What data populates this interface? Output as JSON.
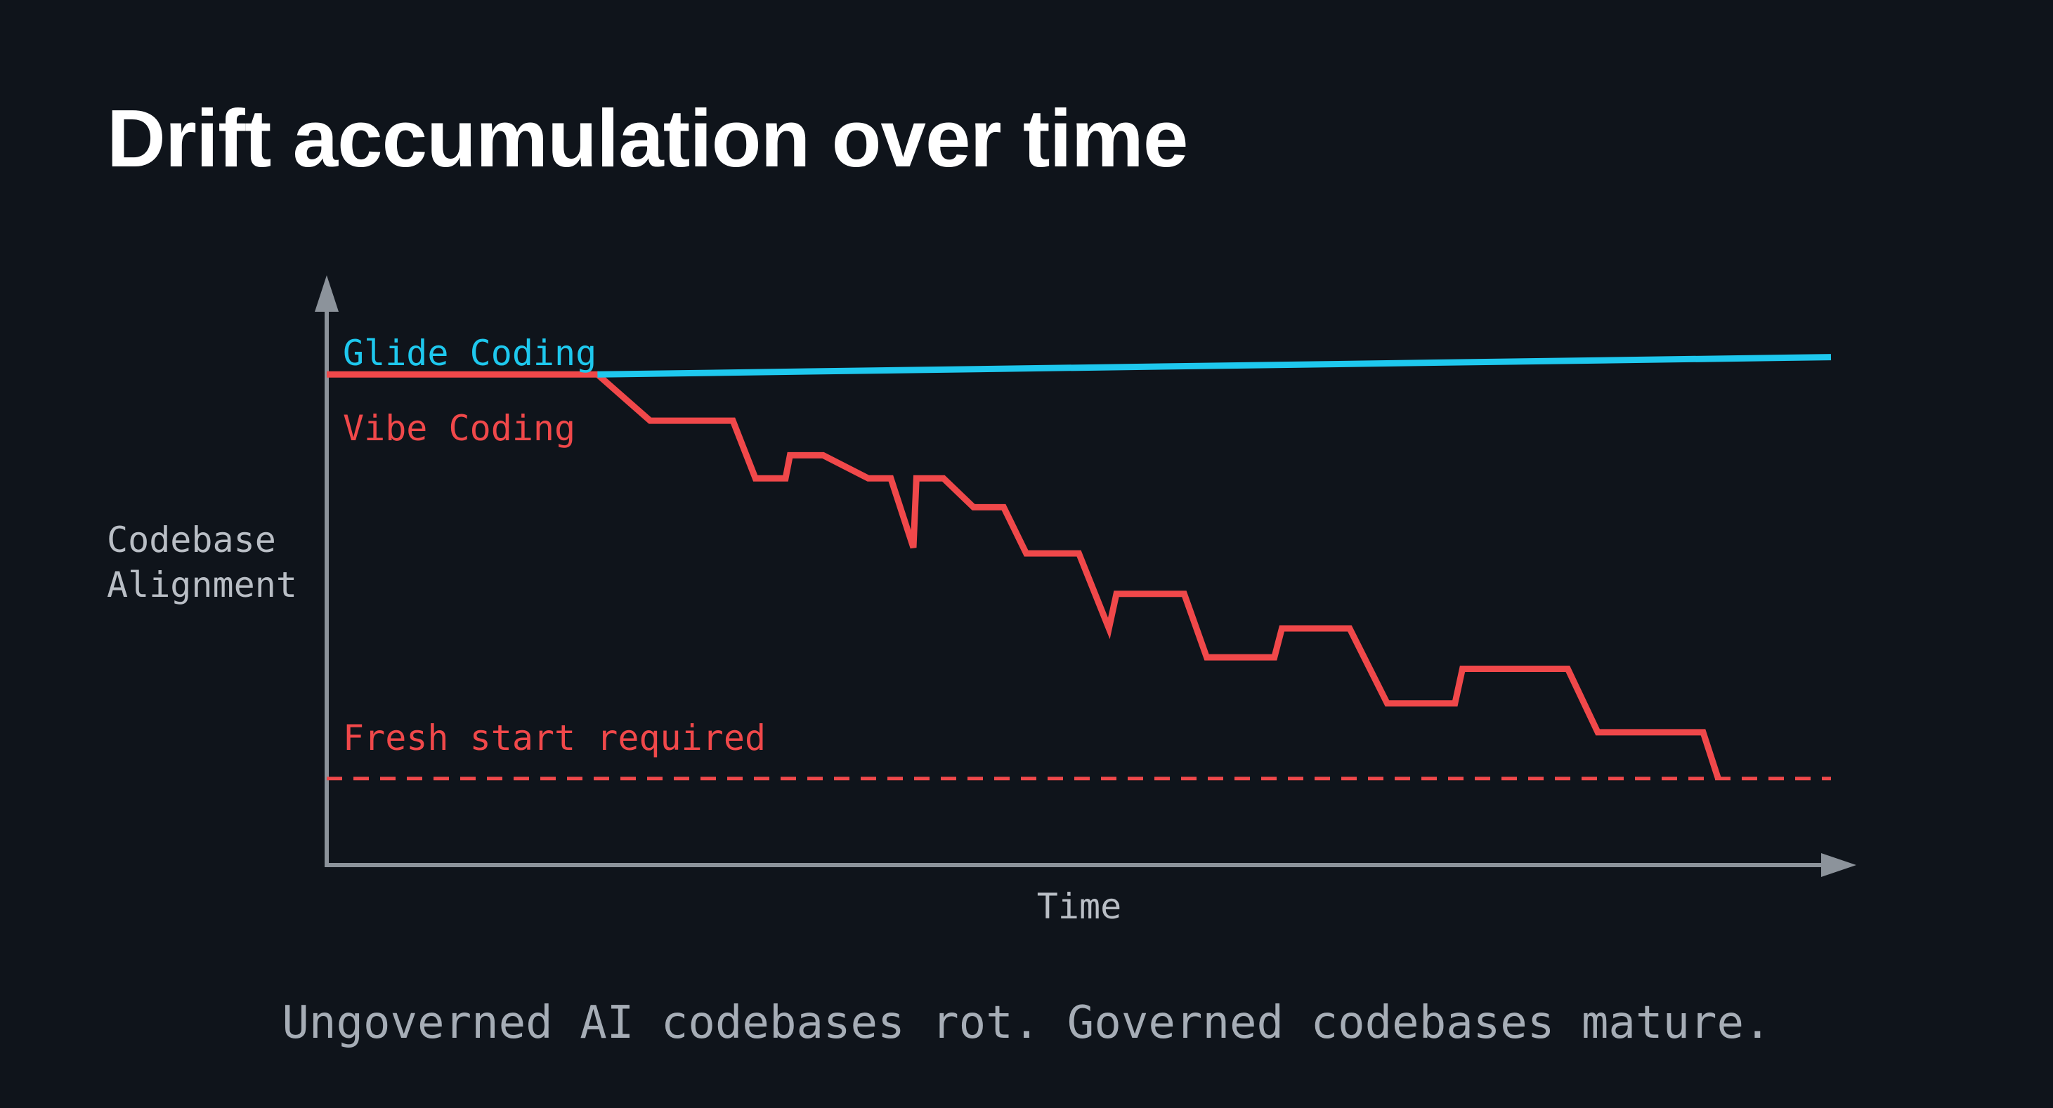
{
  "slide": {
    "title": "Drift accumulation over time",
    "caption": "Ungoverned AI codebases rot. Governed codebases mature."
  },
  "colors": {
    "background": "#0f141b",
    "glide": "#1ec8ee",
    "vibe": "#f0484a",
    "axis": "#8c939b",
    "label": "#b9bec5"
  },
  "chart_data": {
    "type": "line",
    "ylabel_lines": [
      "Codebase",
      "Alignment"
    ],
    "xlabel": "Time",
    "xlim": [
      0,
      100
    ],
    "ylim": [
      0,
      100
    ],
    "grid": false,
    "series": [
      {
        "name": "Glide Coding",
        "color": "#1ec8ee",
        "x": [
          18,
          100
        ],
        "y": [
          85,
          88
        ]
      },
      {
        "name": "Vibe Coding",
        "color": "#f0484a",
        "x": [
          0,
          18,
          21.5,
          27,
          28.5,
          30.5,
          30.8,
          33,
          36,
          37.5,
          39,
          39.2,
          41,
          43,
          45,
          46.5,
          50,
          52,
          52.5,
          57,
          58.5,
          63,
          63.5,
          68,
          70.5,
          75,
          75.5,
          82.5,
          84.5,
          91.5,
          92.5
        ],
        "y": [
          85,
          85,
          77,
          77,
          67,
          67,
          71,
          71,
          67,
          67,
          55,
          67,
          67,
          62,
          62,
          54,
          54,
          41,
          47,
          47,
          36,
          36,
          41,
          41,
          28,
          28,
          34,
          34,
          23,
          23,
          15
        ]
      }
    ],
    "threshold": {
      "label": "Fresh start required",
      "y": 15,
      "style": "dashed",
      "color": "#f0484a"
    }
  }
}
